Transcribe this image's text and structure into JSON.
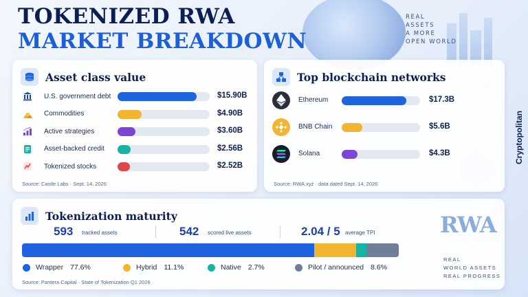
{
  "header": {
    "title_line1": "TOKENIZED RWA",
    "title_line2": "MARKET BREAKDOWN",
    "tagline": [
      "REAL",
      "ASSETS",
      "A MORE",
      "OPEN WORLD"
    ],
    "brand": "Cryptopolitan"
  },
  "colors": {
    "navy": "#0c1f55",
    "accent_blue": "#1c5fd6",
    "wrapper": "#1f63e0",
    "hybrid": "#f2b530",
    "native": "#17b3a6",
    "pilot": "#6f7f99"
  },
  "asset_class": {
    "title": "Asset class value",
    "source": "Source: Castle Labs · Sept. 14, 2026",
    "chart_data": {
      "type": "bar",
      "categories": [
        "U.S. government debt",
        "Commodities",
        "Active strategies",
        "Asset-backed credit",
        "Tokenized stocks"
      ],
      "values": [
        15.9,
        4.9,
        3.6,
        2.56,
        2.52
      ],
      "value_labels": [
        "$15.90B",
        "$4.90B",
        "$3.60B",
        "$2.56B",
        "$2.52B"
      ],
      "unit": "B USD",
      "colors": [
        "#1f63e0",
        "#f2b530",
        "#7b45d6",
        "#17b3a6",
        "#e04848"
      ],
      "icons": [
        "bank-icon",
        "gold-bars-icon",
        "growth-chart-icon",
        "document-icon",
        "stock-chart-icon"
      ],
      "xlim": [
        0,
        18.5
      ]
    }
  },
  "networks": {
    "title": "Top blockchain networks",
    "source": "Source: RWA.xyz · data dated Sept. 14, 2026",
    "chart_data": {
      "type": "bar",
      "categories": [
        "Ethereum",
        "BNB Chain",
        "Solana"
      ],
      "values": [
        17.3,
        5.6,
        4.3
      ],
      "value_labels": [
        "$17.3B",
        "$5.6B",
        "$4.3B"
      ],
      "unit": "B USD",
      "colors": [
        "#1f63e0",
        "#f2b530",
        "#7b45d6"
      ],
      "icons": [
        "ethereum-icon",
        "bnb-icon",
        "solana-icon"
      ],
      "xlim": [
        0,
        21
      ]
    }
  },
  "maturity": {
    "title": "Tokenization maturity",
    "source": "Source: Pantera Capital · State of Tokenization Q1 2026",
    "stats": [
      {
        "value": "593",
        "label": "tracked assets"
      },
      {
        "value": "542",
        "label": "scored live assets"
      },
      {
        "value": "2.04 / 5",
        "label": "average TPI"
      }
    ],
    "chart_data": {
      "type": "bar",
      "stacked": true,
      "categories": [
        "Wrapper",
        "Hybrid",
        "Native",
        "Pilot / announced"
      ],
      "values": [
        77.6,
        11.1,
        2.7,
        8.6
      ],
      "value_labels": [
        "77.6%",
        "11.1%",
        "2.7%",
        "8.6%"
      ],
      "unit": "%",
      "colors": [
        "#1f63e0",
        "#f2b530",
        "#17b3a6",
        "#6f7f99"
      ]
    }
  },
  "rwa_badge": {
    "text": "RWA",
    "tag": [
      "REAL",
      "WORLD ASSETS",
      "REAL PROGRESS"
    ]
  }
}
